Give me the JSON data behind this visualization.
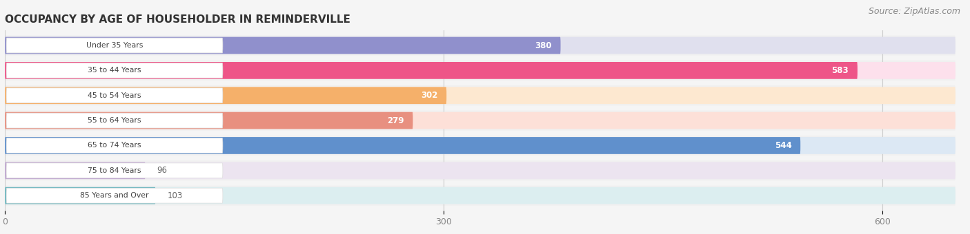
{
  "title": "OCCUPANCY BY AGE OF HOUSEHOLDER IN REMINDERVILLE",
  "source": "Source: ZipAtlas.com",
  "categories": [
    "Under 35 Years",
    "35 to 44 Years",
    "45 to 54 Years",
    "55 to 64 Years",
    "65 to 74 Years",
    "75 to 84 Years",
    "85 Years and Over"
  ],
  "values": [
    380,
    583,
    302,
    279,
    544,
    96,
    103
  ],
  "bar_colors": [
    "#9090cc",
    "#ee5588",
    "#f5b06a",
    "#e89080",
    "#6090cc",
    "#c0a8d0",
    "#70b8c0"
  ],
  "bar_bg_colors": [
    "#e0e0ee",
    "#fde0ec",
    "#fde8d0",
    "#fde0d8",
    "#dce8f4",
    "#ece4f0",
    "#dceef0"
  ],
  "row_bg_color": "#f0f0f0",
  "xlim_max": 650,
  "xticks": [
    0,
    300,
    600
  ],
  "title_fontsize": 11,
  "source_fontsize": 9,
  "fig_bg_color": "#f5f5f5",
  "bar_height": 0.68,
  "label_inside_color": "#ffffff",
  "label_outside_color": "#666666",
  "inside_threshold": 200
}
